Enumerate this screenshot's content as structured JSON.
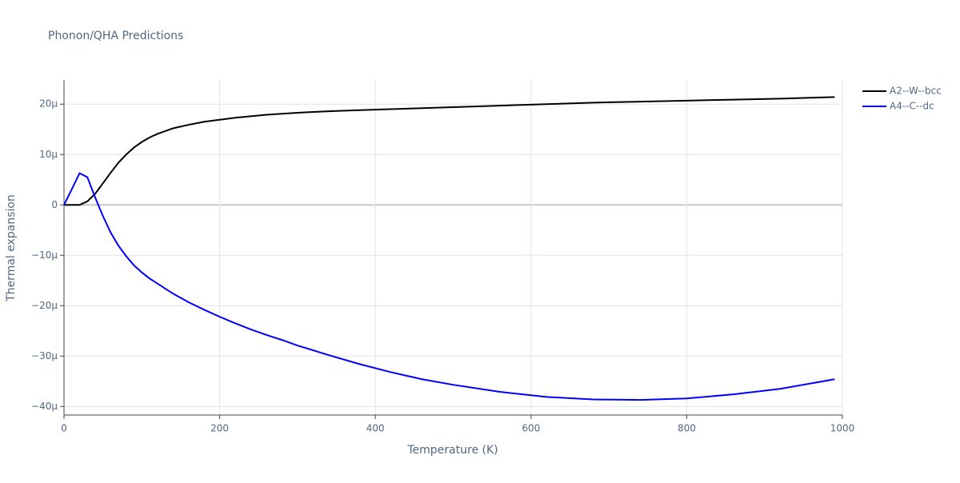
{
  "chart_data": {
    "type": "line",
    "title": "Phonon/QHA Predictions",
    "x_label": "Temperature (K)",
    "y_label": "Thermal expansion",
    "x": [
      0,
      10,
      20,
      30,
      40,
      50,
      60,
      70,
      80,
      90,
      100,
      110,
      120,
      140,
      160,
      180,
      200,
      220,
      240,
      260,
      280,
      300,
      340,
      380,
      420,
      460,
      500,
      560,
      620,
      680,
      740,
      800,
      860,
      920,
      990
    ],
    "series": [
      {
        "name": "A2--W--bcc",
        "color": "#000000",
        "values": [
          0,
          0,
          0,
          7e-07,
          2.2e-06,
          4.3e-06,
          6.4e-06,
          8.4e-06,
          1e-05,
          1.14e-05,
          1.25e-05,
          1.34e-05,
          1.41e-05,
          1.52e-05,
          1.59e-05,
          1.65e-05,
          1.69e-05,
          1.73e-05,
          1.76e-05,
          1.79e-05,
          1.81e-05,
          1.83e-05,
          1.86e-05,
          1.88e-05,
          1.9e-05,
          1.92e-05,
          1.94e-05,
          1.97e-05,
          2e-05,
          2.03e-05,
          2.05e-05,
          2.07e-05,
          2.09e-05,
          2.11e-05,
          2.14e-05
        ]
      },
      {
        "name": "A4--C--dc",
        "color": "#0000ff",
        "values": [
          0,
          3.1e-06,
          6.3e-06,
          5.5e-06,
          1.5e-06,
          -2.2e-06,
          -5.5e-06,
          -8.1e-06,
          -1.02e-05,
          -1.2e-05,
          -1.34e-05,
          -1.46e-05,
          -1.56e-05,
          -1.76e-05,
          -1.93e-05,
          -2.08e-05,
          -2.22e-05,
          -2.35e-05,
          -2.47e-05,
          -2.58e-05,
          -2.68e-05,
          -2.79e-05,
          -2.98e-05,
          -3.16e-05,
          -3.32e-05,
          -3.46e-05,
          -3.57e-05,
          -3.71e-05,
          -3.81e-05,
          -3.86e-05,
          -3.87e-05,
          -3.84e-05,
          -3.76e-05,
          -3.65e-05,
          -3.46e-05
        ]
      }
    ],
    "xlim": [
      0,
      1000
    ],
    "xticks": [
      0,
      200,
      400,
      600,
      800,
      1000
    ],
    "ylim": [
      -4.17e-05,
      2.48e-05
    ],
    "yticks": [
      {
        "value": -4e-05,
        "label": "−40µ"
      },
      {
        "value": -3e-05,
        "label": "−30µ"
      },
      {
        "value": -2e-05,
        "label": "−20µ"
      },
      {
        "value": -1e-05,
        "label": "−10µ"
      },
      0,
      {
        "value": 1e-05,
        "label": "10µ"
      },
      {
        "value": 2e-05,
        "label": "20µ"
      }
    ],
    "grid": true,
    "legend": "right"
  }
}
